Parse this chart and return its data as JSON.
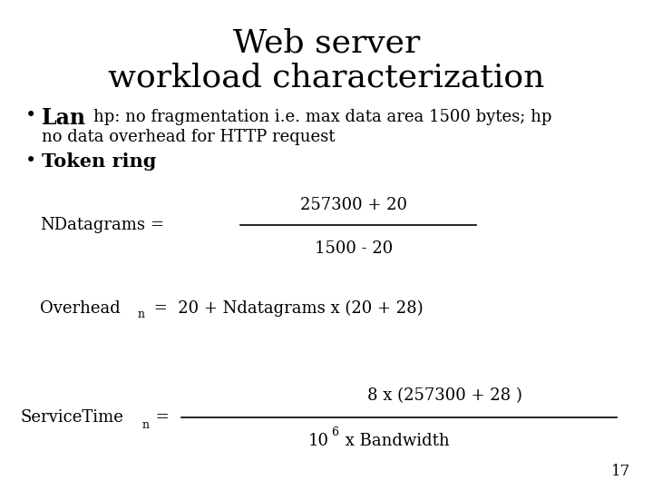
{
  "title_line1": "Web server",
  "title_line2": "workload characterization",
  "fraction1_num": "257300 + 20",
  "fraction1_den": "1500 - 20",
  "fraction2_num": "8 x (257300 + 28 )",
  "fraction2_den_base": "10",
  "fraction2_den_exp": "6",
  "fraction2_den_rest": " x Bandwidth",
  "page_num": "17",
  "bg_color": "#ffffff",
  "text_color": "#000000",
  "title_fontsize": 26,
  "body_fontsize": 13,
  "bold_fontsize": 15,
  "sub_fontsize": 9
}
